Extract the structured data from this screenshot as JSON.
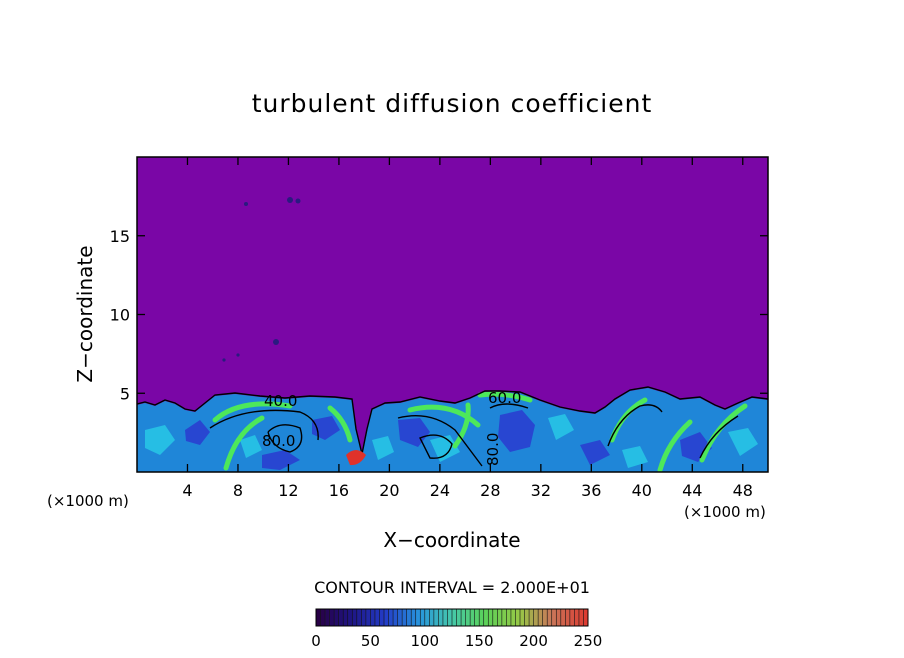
{
  "chart_data": {
    "type": "heatmap",
    "title": "turbulent diffusion coefficient",
    "xlabel": "X−coordinate",
    "ylabel": "Z−coordinate",
    "x_unit_left": "(×1000 m)",
    "x_unit_right": "(×1000 m)",
    "xlim": [
      0,
      50
    ],
    "ylim": [
      0,
      20
    ],
    "x_ticks": [
      4,
      8,
      12,
      16,
      20,
      24,
      28,
      32,
      36,
      40,
      44,
      48
    ],
    "y_ticks": [
      5,
      10,
      15
    ],
    "contour_interval_label": "CONTOUR INTERVAL = 2.000E+01",
    "contour_labels": [
      "40.0",
      "80.0",
      "60.0",
      "80.0"
    ],
    "colorbar": {
      "min": 0,
      "max": 250,
      "ticks": [
        0,
        50,
        100,
        150,
        200,
        250
      ]
    },
    "background_color": "#7a06a6"
  }
}
